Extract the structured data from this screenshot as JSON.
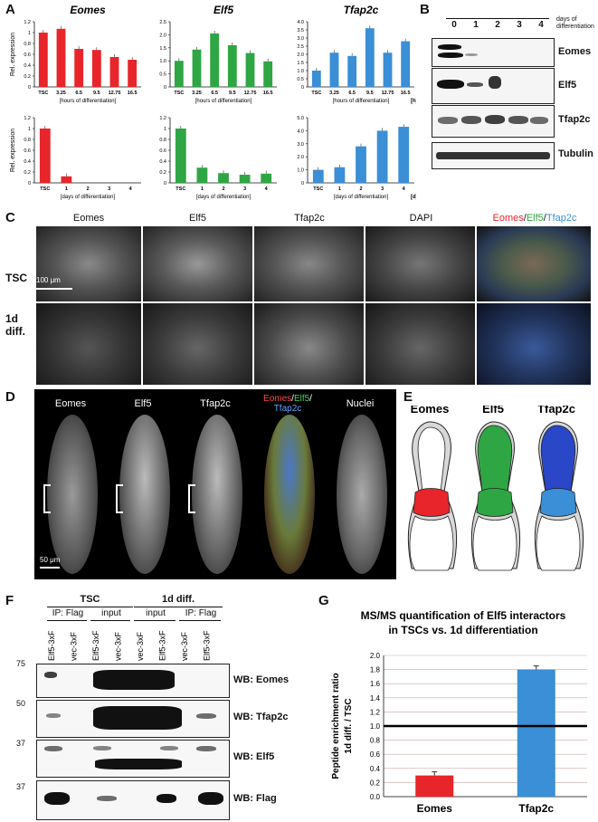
{
  "panels": {
    "A": "A",
    "B": "B",
    "C": "C",
    "D": "D",
    "E": "E",
    "F": "F",
    "G": "G"
  },
  "panel_a": {
    "titles": [
      "Eomes",
      "Elf5",
      "Tfap2c"
    ],
    "ylabel": "Rel. expression",
    "top_xlabel": "[hours of differentiation]",
    "bottom_xlabel": "[days of differentiation]",
    "unit_h": "[h]",
    "unit_d": "[d]"
  },
  "panel_b": {
    "header_days": [
      "0",
      "1",
      "2",
      "3",
      "4"
    ],
    "header_caption": "days of differentiation",
    "rows": [
      "Eomes",
      "Elf5",
      "Tfap2c",
      "Tubulin"
    ]
  },
  "panel_c": {
    "columns": [
      "Eomes",
      "Elf5",
      "Tfap2c",
      "DAPI"
    ],
    "merge": [
      "Eomes",
      "/",
      "Elf5",
      "/",
      "Tfap2c"
    ],
    "rows": [
      "TSC",
      "1d diff."
    ],
    "scale": "100 μm"
  },
  "panel_d": {
    "columns": [
      "Eomes",
      "Elf5",
      "Tfap2c",
      "Nuclei"
    ],
    "merge_line1": [
      "Eomes",
      "/",
      "Elf5",
      "/"
    ],
    "merge_line2": "Tfap2c",
    "scale": "50 μm"
  },
  "panel_e": {
    "labels": [
      "Eomes",
      "Elf5",
      "Tfap2c"
    ]
  },
  "panel_f": {
    "groups": [
      "TSC",
      "1d diff."
    ],
    "subgroups": [
      "IP: Flag",
      "input",
      "input",
      "IP: Flag"
    ],
    "lanes": [
      "Elf5-3xF",
      "vec-3xF",
      "Elf5-3xF",
      "vec-3xF",
      "vec-3xF",
      "Elf5-3xF",
      "vec-3xF",
      "Elf5-3xF"
    ],
    "markers": [
      "75",
      "50",
      "37",
      "37"
    ],
    "blots": [
      "WB: Eomes",
      "WB: Tfap2c",
      "WB: Elf5",
      "WB: Flag"
    ]
  },
  "colors": {
    "eomes": "#e8252a",
    "elf5": "#2fa644",
    "tfap2c": "#3a8fd6"
  },
  "chart_data": [
    {
      "type": "bar",
      "title": "Eomes",
      "categories": [
        "TSC",
        "3.25",
        "6.5",
        "9.5",
        "12.75",
        "16.5"
      ],
      "values": [
        1.0,
        1.07,
        0.7,
        0.68,
        0.55,
        0.5
      ],
      "ylim": [
        0,
        1.2
      ],
      "yticks": [
        "0",
        "0.2",
        "0.4",
        "0.6",
        "0.8",
        "1",
        "1.2"
      ],
      "ylabel": "Rel. expression",
      "xlabel": "[hours of differentiation]",
      "color": "#e8252a"
    },
    {
      "type": "bar",
      "title": "Elf5",
      "categories": [
        "TSC",
        "3.25",
        "6.5",
        "9.5",
        "12.75",
        "16.5"
      ],
      "values": [
        1.0,
        1.43,
        2.05,
        1.6,
        1.3,
        0.98
      ],
      "ylim": [
        0,
        2.5
      ],
      "yticks": [
        "0",
        "0.5",
        "1.0",
        "1.5",
        "2.0",
        "2.5"
      ],
      "xlabel": "[hours of differentiation]",
      "color": "#2fa644"
    },
    {
      "type": "bar",
      "title": "Tfap2c",
      "categories": [
        "TSC",
        "3.25",
        "6.5",
        "9.5",
        "12.75",
        "16.5"
      ],
      "values": [
        1.0,
        2.1,
        1.9,
        3.6,
        2.1,
        2.8
      ],
      "ylim": [
        0,
        4.0
      ],
      "yticks": [
        "0",
        "0.5",
        "1.0",
        "1.5",
        "2.0",
        "2.5",
        "3.0",
        "3.5",
        "4.0"
      ],
      "xlabel": "[hours of differentiation]",
      "color": "#3a8fd6"
    },
    {
      "type": "bar",
      "categories": [
        "TSC",
        "1",
        "2",
        "3",
        "4"
      ],
      "values": [
        1.0,
        0.12,
        0,
        0,
        0
      ],
      "ylim": [
        0,
        1.2
      ],
      "yticks": [
        "0",
        "0.2",
        "0.4",
        "0.6",
        "0.8",
        "1",
        "1.2"
      ],
      "ylabel": "Rel. expression",
      "xlabel": "[days of differentiation]",
      "color": "#e8252a"
    },
    {
      "type": "bar",
      "categories": [
        "TSC",
        "1",
        "2",
        "3",
        "4"
      ],
      "values": [
        1.0,
        0.28,
        0.18,
        0.15,
        0.17
      ],
      "ylim": [
        0,
        1.2
      ],
      "yticks": [
        "0",
        "0.2",
        "0.4",
        "0.6",
        "0.8",
        "1",
        "1.2"
      ],
      "xlabel": "[days of differentiation]",
      "color": "#2fa644"
    },
    {
      "type": "bar",
      "categories": [
        "TSC",
        "1",
        "2",
        "3",
        "4"
      ],
      "values": [
        1.0,
        1.2,
        2.8,
        4.0,
        4.3
      ],
      "ylim": [
        0,
        5.0
      ],
      "yticks": [
        "0",
        "1.0",
        "2.0",
        "3.0",
        "4.0",
        "5.0"
      ],
      "xlabel": "[days of differentiation]",
      "color": "#3a8fd6"
    },
    {
      "type": "bar",
      "title": "MS/MS quantification of Elf5 interactors in TSCs vs. 1d differentiation",
      "title_lines": [
        "MS/MS quantification of Elf5 interactors",
        "in TSCs vs. 1d differentiation"
      ],
      "categories": [
        "Eomes",
        "Tfap2c"
      ],
      "values": [
        0.3,
        1.8
      ],
      "ylim": [
        0,
        2.0
      ],
      "yticks": [
        "0.0",
        "0.2",
        "0.4",
        "0.6",
        "0.8",
        "1.0",
        "1.2",
        "1.4",
        "1.6",
        "1.8",
        "2.0"
      ],
      "ylabel_lines": [
        "Peptide enrichment ratio",
        "1d diff. / TSC"
      ],
      "colors": [
        "#e8252a",
        "#3a8fd6"
      ],
      "reference_line": 1.0
    }
  ]
}
